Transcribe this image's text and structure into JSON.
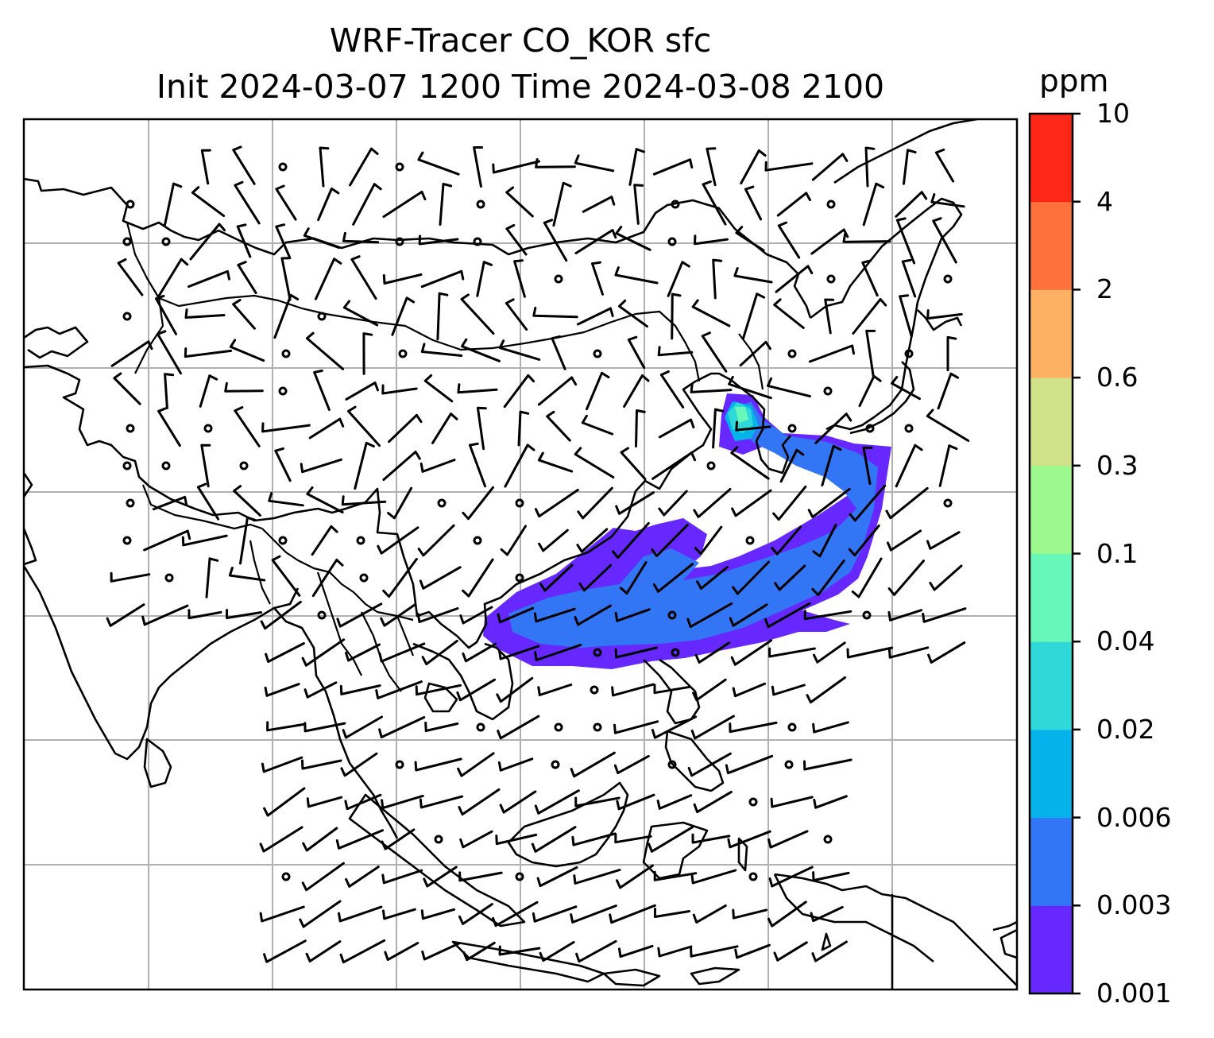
{
  "title": {
    "line1": "WRF-Tracer CO_KOR sfc",
    "line2": "Init 2024-03-07 1200 Time 2024-03-08 2100"
  },
  "colorbar": {
    "unit": "ppm",
    "levels": [
      "0.001",
      "0.003",
      "0.006",
      "0.02",
      "0.04",
      "0.1",
      "0.3",
      "0.6",
      "2",
      "4",
      "10"
    ],
    "colors": [
      "#6628ff",
      "#3276f5",
      "#05b2ea",
      "#2ed9d8",
      "#67f7ba",
      "#9cf98d",
      "#d0e189",
      "#fcb262",
      "#fe713d",
      "#ff2818"
    ]
  },
  "map": {
    "projection_grid": "on",
    "tracer_source_region": "Korea",
    "plume_levels_shown": [
      "0.001",
      "0.003",
      "0.006",
      "0.02",
      "0.04"
    ]
  }
}
